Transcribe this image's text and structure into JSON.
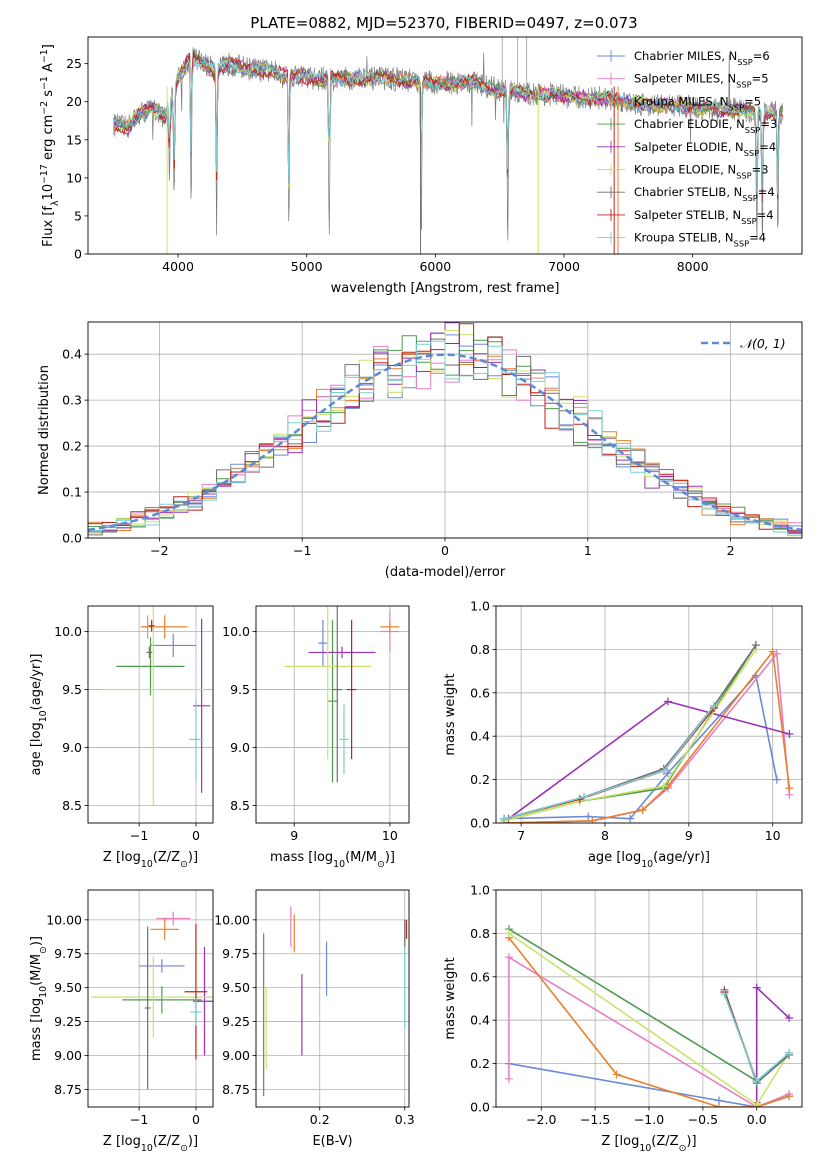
{
  "figure": {
    "title": "PLATE=0882, MJD=52370, FIBERID=0497, z=0.073"
  },
  "colors": [
    "#6a8ad8",
    "#e87fc0",
    "#e9802d",
    "#4f9a4f",
    "#9b33b5",
    "#c9e36a",
    "#707070",
    "#c0221a",
    "#79cfd3"
  ],
  "chart_data": [
    {
      "id": "spectrum",
      "type": "line",
      "xlabel": "wavelength [Angstrom, rest frame]",
      "ylabel": "Flux [f_λ 10^-17 erg cm^-2 s^-1 A^-1]",
      "xlim": [
        3300,
        8850
      ],
      "ylim": [
        0,
        28.5
      ],
      "xticks": [
        4000,
        5000,
        6000,
        7000,
        8000
      ],
      "yticks": [
        0,
        5,
        10,
        15,
        20,
        25
      ],
      "legend": "top-right",
      "series": [
        {
          "name": "Chabrier MILES, N_SSP=6"
        },
        {
          "name": "Salpeter MILES, N_SSP=5"
        },
        {
          "name": "Kroupa MILES, N_SSP=5"
        },
        {
          "name": "Chabrier ELODIE, N_SSP=3"
        },
        {
          "name": "Salpeter ELODIE, N_SSP=4"
        },
        {
          "name": "Kroupa ELODIE, N_SSP=3"
        },
        {
          "name": "Chabrier STELIB, N_SSP=4"
        },
        {
          "name": "Salpeter STELIB, N_SSP=4"
        },
        {
          "name": "Kroupa STELIB, N_SSP=4"
        }
      ],
      "continuum": [
        [
          3500,
          17
        ],
        [
          3600,
          16.5
        ],
        [
          3700,
          18.5
        ],
        [
          3800,
          19
        ],
        [
          3900,
          18
        ],
        [
          4000,
          23
        ],
        [
          4100,
          26
        ],
        [
          4200,
          25
        ],
        [
          4300,
          24
        ],
        [
          4400,
          25
        ],
        [
          4500,
          24.5
        ],
        [
          4700,
          24
        ],
        [
          4900,
          23.5
        ],
        [
          5100,
          23
        ],
        [
          5300,
          23
        ],
        [
          5500,
          23
        ],
        [
          5700,
          23
        ],
        [
          5900,
          22.5
        ],
        [
          6100,
          22.5
        ],
        [
          6300,
          22.5
        ],
        [
          6500,
          21.5
        ],
        [
          6700,
          21
        ],
        [
          6900,
          21
        ],
        [
          7100,
          20.5
        ],
        [
          7300,
          20.5
        ],
        [
          7500,
          20
        ],
        [
          7700,
          19.5
        ],
        [
          7900,
          19.5
        ],
        [
          8100,
          19
        ],
        [
          8300,
          19
        ],
        [
          8500,
          18.5
        ],
        [
          8700,
          18.5
        ]
      ],
      "absorption_lines": [
        [
          3934,
          10
        ],
        [
          3969,
          14
        ],
        [
          4102,
          20
        ],
        [
          4300,
          20
        ],
        [
          4861,
          21
        ],
        [
          5175,
          21
        ],
        [
          5890,
          20
        ],
        [
          6563,
          20
        ],
        [
          8498,
          17
        ],
        [
          8542,
          17
        ],
        [
          8662,
          17
        ]
      ]
    },
    {
      "id": "residuals",
      "type": "histogram",
      "xlabel": "(data-model)/error",
      "ylabel": "Normed distribution",
      "xlim": [
        -2.5,
        2.5
      ],
      "ylim": [
        0,
        0.47
      ],
      "xticks": [
        -2,
        -1,
        0,
        1,
        2
      ],
      "yticks": [
        0.0,
        0.1,
        0.2,
        0.3,
        0.4
      ],
      "legend": "top-right",
      "legend_label": "N(0,1)",
      "bin_width": 0.1,
      "reference_curve": "gaussian mean 0 sigma 1"
    },
    {
      "id": "age-vs-Z",
      "type": "errorbar",
      "xlabel": "Z [log10(Z/Z_sun)]",
      "ylabel": "age  [log10(age/yr)]",
      "xlim": [
        -1.9,
        0.3
      ],
      "ylim": [
        8.35,
        10.22
      ],
      "xticks": [
        -1,
        0
      ],
      "yticks": [
        8.5,
        9.0,
        9.5,
        10.0
      ],
      "points": [
        {
          "x": -0.4,
          "y": 9.88,
          "xerr": 0.4,
          "yerr": 0.1
        },
        {
          "x": -0.85,
          "y": 10.04,
          "xerr": 0.12,
          "yerr": 0.1
        },
        {
          "x": -0.55,
          "y": 10.04,
          "xerr": 0.4,
          "yerr": 0.1
        },
        {
          "x": -0.8,
          "y": 9.7,
          "xerr": 0.6,
          "yerr": 0.25
        },
        {
          "x": 0.1,
          "y": 9.36,
          "xerr": 0.15,
          "yerr": 0.75
        },
        {
          "x": -0.75,
          "y": 9.5,
          "xerr": 0.9,
          "yerr": 1.0
        },
        {
          "x": -0.82,
          "y": 9.82,
          "xerr": 0.05,
          "yerr": 0.05
        },
        {
          "x": -0.78,
          "y": 10.05,
          "xerr": 0.05,
          "yerr": 0.05
        },
        {
          "x": 0.0,
          "y": 9.07,
          "xerr": 0.12,
          "yerr": 0.35
        }
      ]
    },
    {
      "id": "age-vs-mass",
      "type": "errorbar",
      "xlabel": "mass [log10(M/M_sun)]",
      "ylabel": "",
      "xlim": [
        8.6,
        10.2
      ],
      "ylim": [
        8.35,
        10.22
      ],
      "xticks": [
        9,
        10
      ],
      "yticks": [
        8.5,
        9.0,
        9.5,
        10.0
      ],
      "points": [
        {
          "x": 9.3,
          "y": 9.9,
          "xerr": 0.05,
          "yerr": 0.2
        },
        {
          "x": 10.0,
          "y": 10.0,
          "xerr": 0.1,
          "yerr": 0.18
        },
        {
          "x": 10.0,
          "y": 10.04,
          "xerr": 0.1,
          "yerr": 0.05
        },
        {
          "x": 9.4,
          "y": 9.4,
          "xerr": 0.05,
          "yerr": 0.7
        },
        {
          "x": 9.5,
          "y": 9.82,
          "xerr": 0.35,
          "yerr": 0.05
        },
        {
          "x": 9.35,
          "y": 9.7,
          "xerr": 0.45,
          "yerr": 0.8
        },
        {
          "x": 9.45,
          "y": 9.5,
          "xerr": 0.05,
          "yerr": 0.8
        },
        {
          "x": 9.6,
          "y": 9.5,
          "xerr": 0.05,
          "yerr": 0.6
        },
        {
          "x": 9.52,
          "y": 9.07,
          "xerr": 0.05,
          "yerr": 0.3
        }
      ]
    },
    {
      "id": "massweight-vs-age",
      "type": "line",
      "xlabel": "age  [log10(age/yr)]",
      "ylabel": "mass weight",
      "xlim": [
        6.7,
        10.35
      ],
      "ylim": [
        0,
        1.0
      ],
      "xticks": [
        7,
        8,
        9,
        10
      ],
      "yticks": [
        0.0,
        0.2,
        0.4,
        0.6,
        0.8,
        1.0
      ],
      "series": [
        {
          "x": [
            6.8,
            7.8,
            8.3,
            8.75,
            9.8,
            10.05
          ],
          "y": [
            0.02,
            0.03,
            0.02,
            0.23,
            0.68,
            0.2
          ]
        },
        {
          "x": [
            6.8,
            7.85,
            8.45,
            8.75,
            10.05,
            10.2
          ],
          "y": [
            0.0,
            0.01,
            0.06,
            0.16,
            0.78,
            0.13
          ]
        },
        {
          "x": [
            6.8,
            7.85,
            8.45,
            8.75,
            10.0,
            10.2
          ],
          "y": [
            0.0,
            0.01,
            0.06,
            0.17,
            0.79,
            0.16
          ]
        },
        {
          "x": [
            6.8,
            7.7,
            8.7,
            9.8
          ],
          "y": [
            0.01,
            0.1,
            0.16,
            0.82
          ]
        },
        {
          "x": [
            6.85,
            8.75,
            10.2
          ],
          "y": [
            0.02,
            0.56,
            0.41
          ]
        },
        {
          "x": [
            6.8,
            7.7,
            8.7,
            9.8
          ],
          "y": [
            0.01,
            0.1,
            0.17,
            0.8
          ]
        },
        {
          "x": [
            6.8,
            7.75,
            8.7,
            9.3,
            9.8
          ],
          "y": [
            0.02,
            0.12,
            0.25,
            0.54,
            0.82
          ]
        },
        {
          "x": [
            6.8,
            7.7,
            8.7,
            9.3
          ],
          "y": [
            0.02,
            0.11,
            0.24,
            0.53
          ]
        },
        {
          "x": [
            6.8,
            7.75,
            8.7,
            9.3
          ],
          "y": [
            0.02,
            0.12,
            0.24,
            0.54
          ]
        }
      ]
    },
    {
      "id": "mass-vs-Z",
      "type": "errorbar",
      "xlabel": "Z [log10(Z/Z_sun)]",
      "ylabel": "mass [log10(M/M_sun)]",
      "xlim": [
        -1.9,
        0.3
      ],
      "ylim": [
        8.62,
        10.22
      ],
      "xticks": [
        -1,
        0
      ],
      "yticks": [
        8.75,
        9.0,
        9.25,
        9.5,
        9.75,
        10.0
      ],
      "points": [
        {
          "x": -0.6,
          "y": 9.66,
          "xerr": 0.4,
          "yerr": 0.05
        },
        {
          "x": -0.4,
          "y": 10.01,
          "xerr": 0.3,
          "yerr": 0.05
        },
        {
          "x": -0.55,
          "y": 9.93,
          "xerr": 0.25,
          "yerr": 0.08
        },
        {
          "x": -0.6,
          "y": 9.41,
          "xerr": 0.7,
          "yerr": 0.1
        },
        {
          "x": 0.15,
          "y": 9.4,
          "xerr": 0.2,
          "yerr": 0.4
        },
        {
          "x": -0.75,
          "y": 9.43,
          "xerr": 1.1,
          "yerr": 0.3
        },
        {
          "x": -0.85,
          "y": 9.35,
          "xerr": 0.05,
          "yerr": 0.6
        },
        {
          "x": 0.0,
          "y": 9.47,
          "xerr": 0.2,
          "yerr": 0.5
        },
        {
          "x": 0.0,
          "y": 9.32,
          "xerr": 0.1,
          "yerr": 0.1
        }
      ]
    },
    {
      "id": "mass-vs-ebv",
      "type": "errorbar",
      "xlabel": "E(B-V)",
      "ylabel": "",
      "xlim": [
        0.125,
        0.305
      ],
      "ylim": [
        8.62,
        10.22
      ],
      "xticks": [
        0.2,
        0.3
      ],
      "yticks": [
        8.75,
        9.0,
        9.25,
        9.5,
        9.75,
        10.0
      ],
      "points": [
        {
          "x": 0.208,
          "y": 9.64,
          "xerr": 0.0,
          "yerr": 0.2
        },
        {
          "x": 0.166,
          "y": 9.95,
          "xerr": 0.0,
          "yerr": 0.15
        },
        {
          "x": 0.17,
          "y": 9.9,
          "xerr": 0.0,
          "yerr": 0.14
        },
        {
          "x": 0.134,
          "y": 9.3,
          "xerr": 0.0,
          "yerr": 0.6
        },
        {
          "x": 0.179,
          "y": 9.3,
          "xerr": 0.0,
          "yerr": 0.3
        },
        {
          "x": 0.137,
          "y": 9.2,
          "xerr": 0.0,
          "yerr": 0.3
        },
        {
          "x": 0.3,
          "y": 9.9,
          "xerr": 0.0,
          "yerr": 0.1
        },
        {
          "x": 0.302,
          "y": 9.93,
          "xerr": 0.0,
          "yerr": 0.07
        },
        {
          "x": 0.3,
          "y": 9.5,
          "xerr": 0.0,
          "yerr": 0.3
        }
      ]
    },
    {
      "id": "massweight-vs-Z",
      "type": "line",
      "xlabel": "Z [log10(Z/Z_sun)]",
      "ylabel": "mass weight",
      "xlim": [
        -2.42,
        0.42
      ],
      "ylim": [
        0,
        1.0
      ],
      "xticks": [
        -2.0,
        -1.5,
        -1.0,
        -0.5,
        0.0
      ],
      "yticks": [
        0.0,
        0.2,
        0.4,
        0.6,
        0.8,
        1.0
      ],
      "series": [
        {
          "x": [
            -2.3,
            -0.35,
            0.0,
            0.3
          ],
          "y": [
            0.2,
            0.03,
            0.0,
            0.05
          ]
        },
        {
          "x": [
            -2.3,
            -2.3,
            0.0,
            0.3
          ],
          "y": [
            0.13,
            0.69,
            0.0,
            0.06
          ]
        },
        {
          "x": [
            -2.3,
            -1.3,
            -0.35,
            0.0,
            0.3
          ],
          "y": [
            0.78,
            0.15,
            0.0,
            0.0,
            0.05
          ]
        },
        {
          "x": [
            -2.3,
            0.0,
            0.3
          ],
          "y": [
            0.82,
            0.12,
            0.24
          ]
        },
        {
          "x": [
            0.0,
            0.0,
            0.3
          ],
          "y": [
            0.02,
            0.55,
            0.41
          ]
        },
        {
          "x": [
            -2.3,
            0.0,
            0.3
          ],
          "y": [
            0.8,
            0.01,
            0.25
          ]
        },
        {
          "x": [
            -0.3,
            0.0,
            0.3
          ],
          "y": [
            0.54,
            0.11,
            0.24
          ]
        },
        {
          "x": [
            -0.3,
            0.0
          ],
          "y": [
            0.53,
            0.12
          ]
        },
        {
          "x": [
            -0.3,
            0.0,
            0.3
          ],
          "y": [
            0.52,
            0.12,
            0.25
          ]
        }
      ]
    }
  ]
}
